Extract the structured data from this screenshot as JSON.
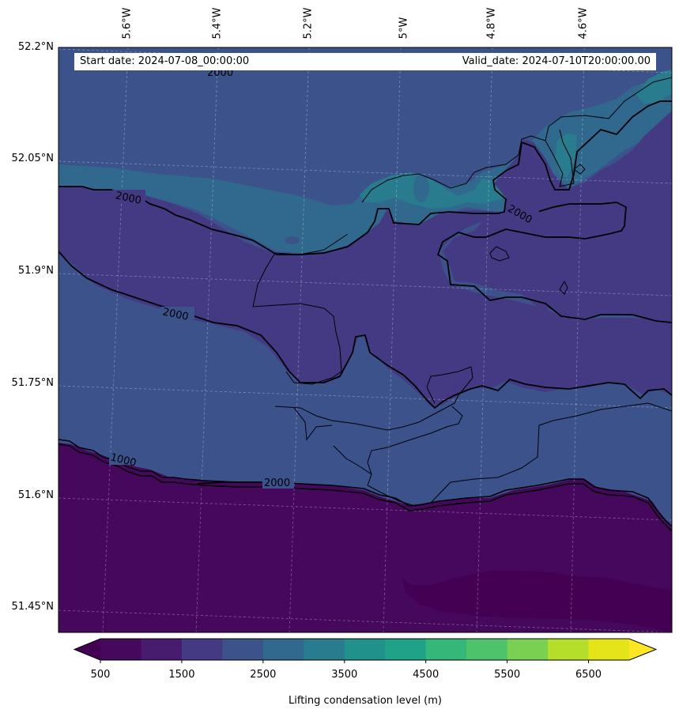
{
  "info": {
    "start_date": "Start date: 2024-07-08_00:00:00",
    "valid_date": "Valid_date: 2024-07-10T20:00:00.00"
  },
  "axes": {
    "lon_labels": [
      "5.6°W",
      "5.4°W",
      "5.2°W",
      "5°W",
      "4.8°W",
      "4.6°W"
    ],
    "lat_labels": [
      "52.2°N",
      "52.05°N",
      "51.9°N",
      "51.75°N",
      "51.6°N",
      "51.45°N"
    ]
  },
  "contour_labels": [
    "2000",
    "2000",
    "2000",
    "2000",
    "1000",
    "2000"
  ],
  "colorbar": {
    "title": "Lifting condensation level (m)",
    "tick_labels": [
      "500",
      "1500",
      "2500",
      "3500",
      "4500",
      "5500",
      "6500"
    ],
    "levels": [
      500,
      1000,
      1500,
      2000,
      2500,
      3000,
      3500,
      4000,
      4500,
      5000,
      5500,
      6000,
      6500,
      7000
    ],
    "colors": [
      "#46085c",
      "#471b6e",
      "#443a83",
      "#3b528b",
      "#30688e",
      "#287c8e",
      "#21918c",
      "#1fa287",
      "#35b779",
      "#4ec36b",
      "#7ad151",
      "#b5de2b",
      "#e5e419"
    ],
    "under_color": "#440154",
    "over_color": "#fde725"
  },
  "map_colors": {
    "band_1500_2000": "#443a83",
    "band_2000_2500": "#3b528b",
    "band_2500_3000": "#30688e",
    "band_3000_3500": "#287c8e",
    "band_500_1000": "#46085c",
    "band_below_500": "#440154"
  }
}
